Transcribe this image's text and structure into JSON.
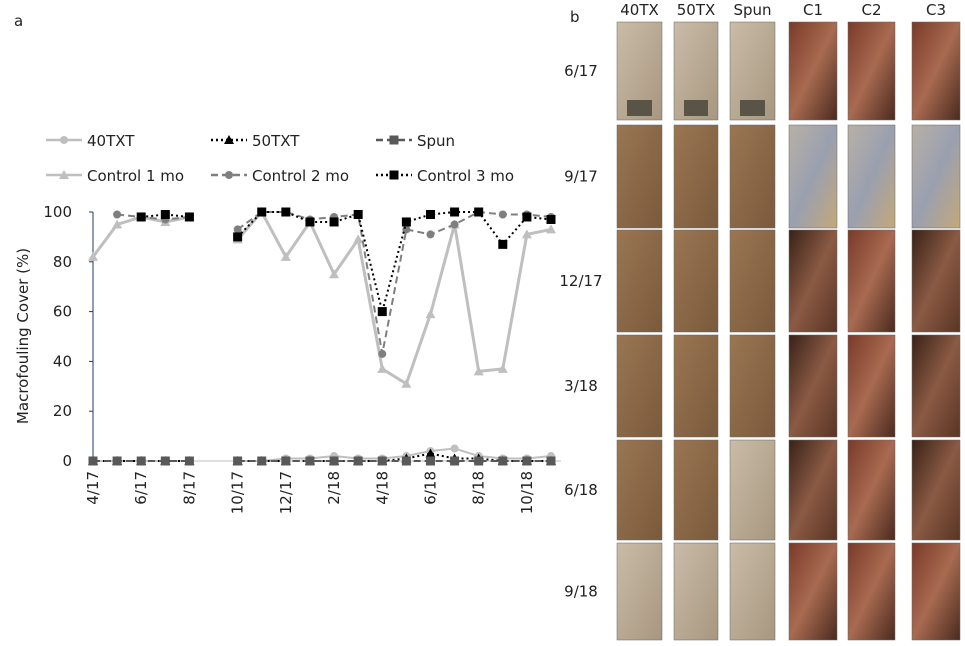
{
  "chart_data": {
    "type": "line",
    "label": "a",
    "y_label": "Macrofouling Cover (%)",
    "categories": [
      "4/17",
      null,
      "6/17",
      null,
      "8/17",
      null,
      "10/17",
      null,
      "12/17",
      null,
      "2/18",
      null,
      "4/18",
      null,
      "6/18",
      null,
      "8/18",
      null,
      "10/18",
      null
    ],
    "ylim": [
      0,
      100
    ],
    "yticks": [
      0,
      20,
      40,
      60,
      80,
      100
    ],
    "series": [
      {
        "name": "40TXT",
        "color": "#bfbfbf",
        "marker": "circle",
        "dash": "solid",
        "values": [
          0,
          0,
          0,
          0,
          0,
          null,
          0,
          0,
          1,
          1,
          2,
          1,
          1,
          2,
          4,
          5,
          2,
          1,
          1,
          2
        ]
      },
      {
        "name": "50TXT",
        "color": "#000000",
        "marker": "triangle",
        "dash": "dotted",
        "values": [
          0,
          0,
          0,
          0,
          0,
          null,
          0,
          0,
          0,
          0,
          0,
          0,
          0,
          1,
          3,
          1,
          1,
          0,
          0,
          0
        ]
      },
      {
        "name": "Spun",
        "color": "#595959",
        "marker": "square",
        "dash": "dashed",
        "values": [
          0,
          0,
          0,
          0,
          0,
          null,
          0,
          0,
          0,
          0,
          0,
          0,
          0,
          0,
          0,
          0,
          0,
          0,
          0,
          0
        ]
      },
      {
        "name": "Control 1 mo",
        "color": "#bfbfbf",
        "marker": "triangle",
        "dash": "solid",
        "values": [
          82,
          95,
          98,
          96,
          98,
          null,
          89,
          100,
          82,
          96,
          75,
          89,
          37,
          31,
          59,
          95,
          36,
          37,
          91,
          93
        ]
      },
      {
        "name": "Control 2 mo",
        "color": "#7f7f7f",
        "marker": "circle",
        "dash": "dashed",
        "values": [
          null,
          99,
          98,
          97,
          98,
          null,
          93,
          100,
          100,
          97,
          98,
          99,
          43,
          93,
          91,
          95,
          100,
          99,
          99,
          98
        ]
      },
      {
        "name": "Control 3 mo",
        "color": "#000000",
        "marker": "square",
        "dash": "dotted",
        "values": [
          null,
          null,
          98,
          99,
          98,
          null,
          90,
          100,
          100,
          96,
          96,
          99,
          60,
          96,
          99,
          100,
          100,
          87,
          98,
          97
        ]
      }
    ]
  },
  "panel_b": {
    "label": "b",
    "columns": [
      "40TX",
      "50TX",
      "Spun",
      "C1",
      "C2",
      "C3"
    ],
    "rows": [
      "6/17",
      "9/17",
      "12/17",
      "3/18",
      "6/18",
      "9/18"
    ]
  }
}
